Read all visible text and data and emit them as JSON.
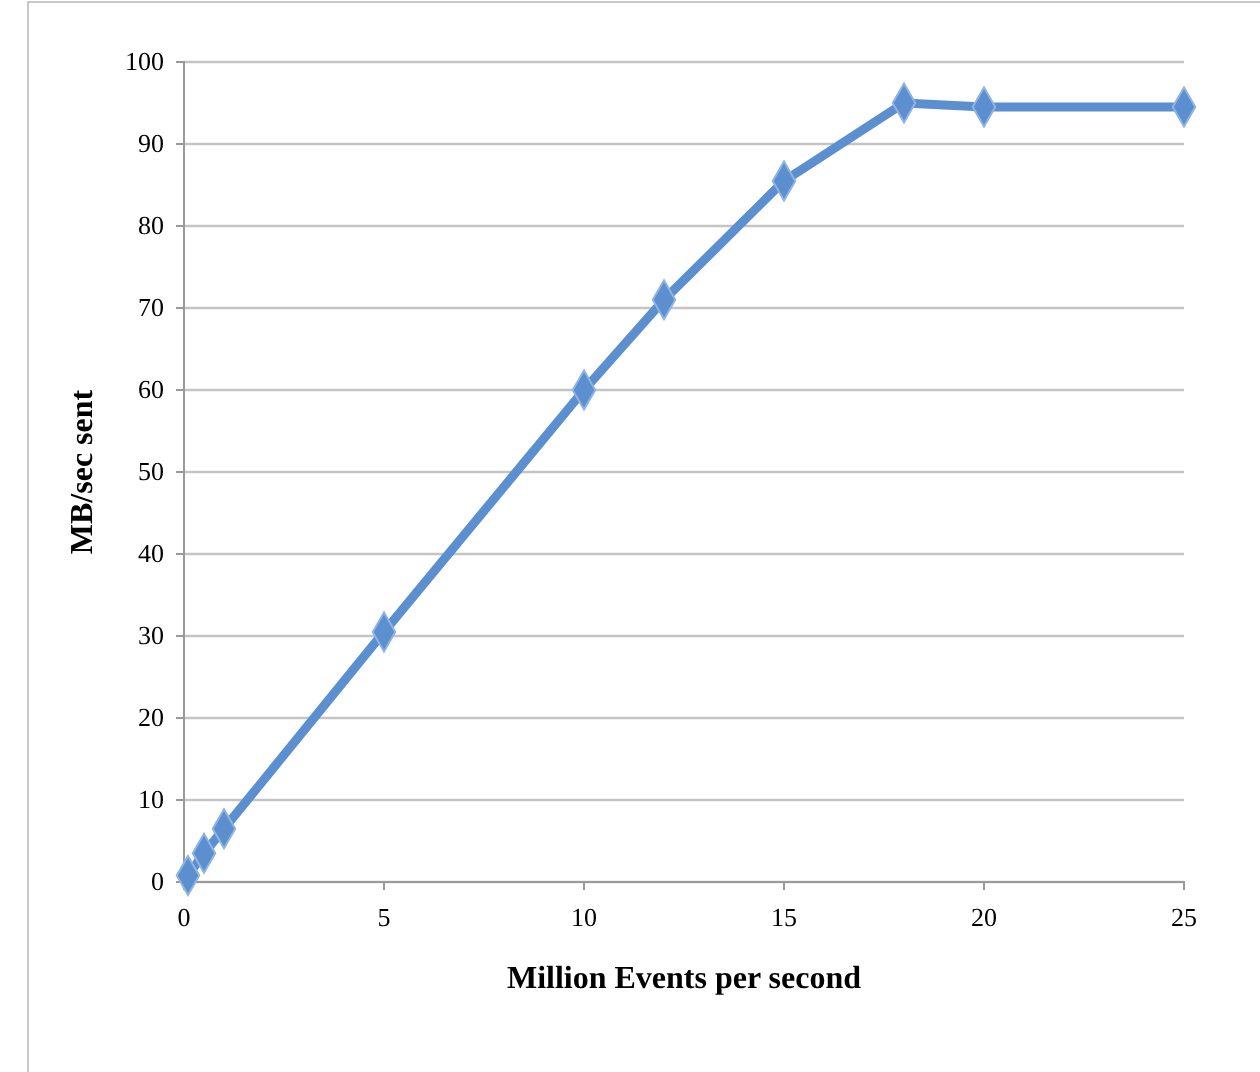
{
  "chart_data": {
    "type": "line",
    "xlabel": "Million Events per second",
    "ylabel": "MB/sec sent",
    "x": [
      0.1,
      0.5,
      1,
      5,
      10,
      12,
      15,
      18,
      20,
      25
    ],
    "series": [
      {
        "color": "#5b8fcf",
        "values": [
          0.8,
          3.5,
          6.5,
          30.5,
          60,
          71,
          85.5,
          95,
          94.5,
          94.5
        ]
      }
    ],
    "xlim": [
      0,
      25
    ],
    "xticks": [
      0,
      5,
      10,
      15,
      20,
      25
    ],
    "ylim": [
      0,
      100
    ],
    "yticks": [
      0,
      10,
      20,
      30,
      40,
      50,
      60,
      70,
      80,
      90,
      100
    ],
    "grid": "y",
    "marker": "diamond",
    "line_style": "solid"
  }
}
